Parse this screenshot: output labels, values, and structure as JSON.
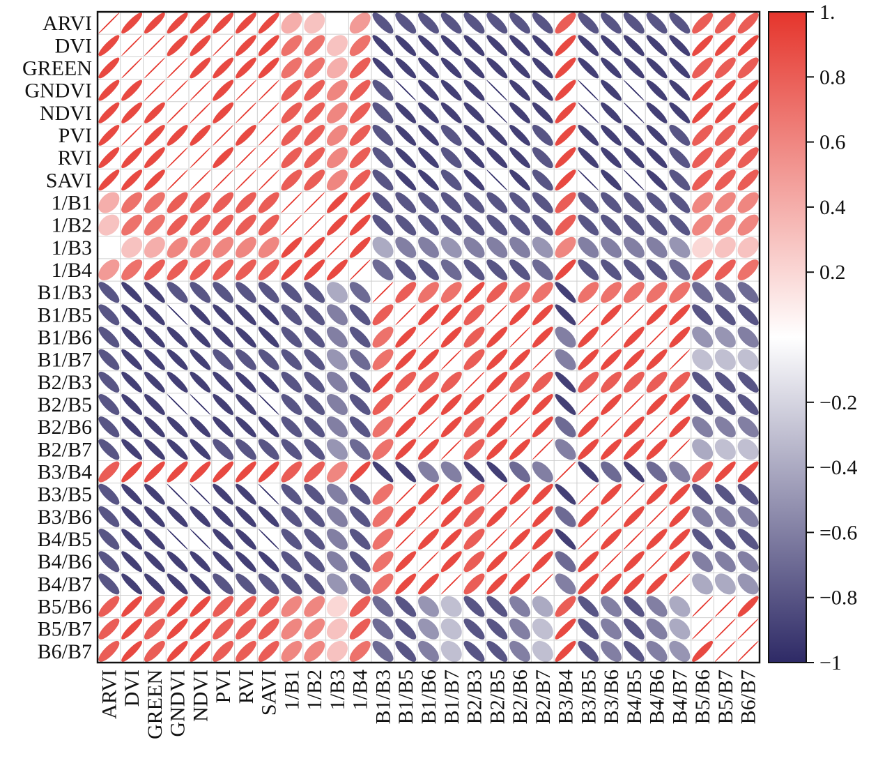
{
  "chart_data": {
    "type": "correlation",
    "variables": [
      "ARVI",
      "DVI",
      "GREEN",
      "GNDVI",
      "NDVI",
      "PVI",
      "RVI",
      "SAVI",
      "1/B1",
      "1/B2",
      "1/B3",
      "1/B4",
      "B1/B3",
      "B1/B5",
      "B1/B6",
      "B1/B7",
      "B2/B3",
      "B2/B5",
      "B2/B6",
      "B2/B7",
      "B3/B4",
      "B3/B5",
      "B3/B6",
      "B4/B5",
      "B4/B6",
      "B4/B7",
      "B5/B6",
      "B5/B7",
      "B6/B7"
    ],
    "matrix": [
      [
        1,
        0.9,
        0.9,
        0.9,
        0.9,
        0.9,
        0.9,
        0.9,
        0.4,
        0.3,
        0,
        0.5,
        -0.8,
        -0.8,
        -0.8,
        -0.8,
        -0.8,
        -0.8,
        -0.8,
        -0.8,
        0.8,
        -0.8,
        -0.8,
        -0.8,
        -0.8,
        -0.8,
        0.8,
        0.8,
        0.8
      ],
      [
        0.9,
        1,
        1,
        0.9,
        0.9,
        1,
        0.9,
        0.9,
        0.7,
        0.7,
        0.3,
        0.7,
        -0.9,
        -0.9,
        -0.9,
        -0.9,
        -0.9,
        -0.9,
        -0.9,
        -0.9,
        0.9,
        -0.9,
        -0.9,
        -0.9,
        -0.9,
        -0.9,
        0.9,
        0.9,
        0.9
      ],
      [
        0.9,
        1,
        1,
        1,
        0.9,
        0.9,
        0.9,
        0.9,
        0.7,
        0.7,
        0.4,
        0.8,
        -0.9,
        -0.9,
        -0.9,
        -0.9,
        -0.9,
        -0.9,
        -0.9,
        -0.9,
        0.9,
        -0.9,
        -0.9,
        -0.9,
        -0.9,
        -0.9,
        0.8,
        0.8,
        0.8
      ],
      [
        0.9,
        0.9,
        1,
        1,
        1,
        0.9,
        1,
        1,
        0.8,
        0.8,
        0.6,
        0.8,
        -0.8,
        -1,
        -0.9,
        -0.9,
        -0.9,
        -1,
        -0.9,
        -0.9,
        0.9,
        -1,
        -0.9,
        -1,
        -0.9,
        -0.9,
        0.9,
        0.9,
        0.9
      ],
      [
        0.9,
        0.9,
        0.9,
        1,
        1,
        0.9,
        1,
        1,
        0.8,
        0.8,
        0.6,
        0.8,
        -0.8,
        -0.9,
        -0.9,
        -0.9,
        -0.9,
        -1,
        -0.9,
        -0.9,
        0.9,
        -1,
        -0.9,
        -1,
        -0.9,
        -0.9,
        0.9,
        0.9,
        0.9
      ],
      [
        0.9,
        1,
        0.9,
        0.9,
        0.9,
        1,
        0.9,
        1,
        0.8,
        0.8,
        0.6,
        0.8,
        -0.8,
        -0.9,
        -0.9,
        -0.8,
        -0.9,
        -0.9,
        -0.9,
        -0.8,
        0.9,
        -0.9,
        -0.9,
        -0.9,
        -0.9,
        -0.8,
        0.8,
        0.8,
        0.8
      ],
      [
        0.9,
        0.9,
        0.9,
        1,
        1,
        0.9,
        1,
        1,
        0.8,
        0.8,
        0.6,
        0.8,
        -0.8,
        -0.9,
        -0.9,
        -0.8,
        -0.9,
        -0.9,
        -0.9,
        -0.8,
        0.9,
        -0.9,
        -0.9,
        -0.9,
        -0.9,
        -0.8,
        0.8,
        0.8,
        0.8
      ],
      [
        0.9,
        0.9,
        0.9,
        1,
        1,
        1,
        1,
        1,
        0.8,
        0.8,
        0.6,
        0.8,
        -0.8,
        -0.9,
        -0.9,
        -0.8,
        -0.9,
        -1,
        -0.9,
        -0.8,
        0.9,
        -1,
        -0.9,
        -1,
        -0.9,
        -0.8,
        0.8,
        0.8,
        0.8
      ],
      [
        0.4,
        0.7,
        0.7,
        0.8,
        0.8,
        0.8,
        0.8,
        0.8,
        1,
        1,
        0.9,
        0.9,
        -0.8,
        -0.8,
        -0.8,
        -0.8,
        -0.8,
        -0.8,
        -0.8,
        -0.8,
        0.8,
        -0.8,
        -0.8,
        -0.8,
        -0.8,
        -0.8,
        0.6,
        0.6,
        0.6
      ],
      [
        0.3,
        0.7,
        0.7,
        0.8,
        0.8,
        0.8,
        0.8,
        0.8,
        1,
        1,
        0.9,
        0.9,
        -0.8,
        -0.8,
        -0.8,
        -0.8,
        -0.8,
        -0.8,
        -0.8,
        -0.8,
        0.8,
        -0.8,
        -0.8,
        -0.8,
        -0.8,
        -0.8,
        0.6,
        0.6,
        0.6
      ],
      [
        0,
        0.3,
        0.4,
        0.6,
        0.6,
        0.6,
        0.6,
        0.6,
        0.9,
        0.9,
        1,
        0.9,
        -0.4,
        -0.6,
        -0.6,
        -0.5,
        -0.6,
        -0.6,
        -0.6,
        -0.5,
        0.6,
        -0.6,
        -0.6,
        -0.6,
        -0.6,
        -0.5,
        0.2,
        0.3,
        0.3
      ],
      [
        0.5,
        0.7,
        0.8,
        0.8,
        0.8,
        0.8,
        0.8,
        0.8,
        0.9,
        0.9,
        0.9,
        1,
        -0.7,
        -0.8,
        -0.8,
        -0.7,
        -0.8,
        -0.8,
        -0.8,
        -0.7,
        0.9,
        -0.8,
        -0.8,
        -0.8,
        -0.8,
        -0.7,
        0.8,
        0.8,
        0.7
      ],
      [
        -0.8,
        -0.9,
        -0.9,
        -0.8,
        -0.8,
        -0.8,
        -0.8,
        -0.8,
        -0.8,
        -0.8,
        -0.4,
        -0.7,
        1,
        0.8,
        0.7,
        0.7,
        0.9,
        0.8,
        0.7,
        0.7,
        -0.9,
        0.7,
        0.7,
        0.7,
        0.7,
        0.7,
        -0.7,
        -0.7,
        -0.7
      ],
      [
        -0.8,
        -0.9,
        -0.9,
        -1,
        -0.9,
        -0.9,
        -0.9,
        -0.9,
        -0.8,
        -0.8,
        -0.6,
        -0.8,
        0.8,
        1,
        0.9,
        0.9,
        0.8,
        1,
        0.9,
        0.9,
        -0.9,
        1,
        0.9,
        1,
        0.9,
        0.9,
        -0.8,
        -0.8,
        -0.8
      ],
      [
        -0.8,
        -0.9,
        -0.9,
        -0.9,
        -0.9,
        -0.9,
        -0.9,
        -0.9,
        -0.8,
        -0.8,
        -0.6,
        -0.8,
        0.7,
        0.9,
        1,
        0.9,
        0.8,
        0.9,
        1,
        0.9,
        -0.6,
        0.9,
        1,
        0.9,
        1,
        0.9,
        -0.5,
        -0.5,
        -0.6
      ],
      [
        -0.8,
        -0.9,
        -0.9,
        -0.9,
        -0.9,
        -0.8,
        -0.8,
        -0.8,
        -0.8,
        -0.8,
        -0.5,
        -0.7,
        0.7,
        0.9,
        0.9,
        1,
        0.8,
        0.9,
        0.9,
        1,
        -0.6,
        0.9,
        0.9,
        0.9,
        0.9,
        1,
        -0.3,
        -0.3,
        -0.3
      ],
      [
        -0.8,
        -0.9,
        -0.9,
        -0.9,
        -0.9,
        -0.9,
        -0.9,
        -0.9,
        -0.8,
        -0.8,
        -0.6,
        -0.8,
        0.9,
        0.8,
        0.8,
        0.8,
        1,
        0.9,
        0.8,
        0.8,
        -0.9,
        0.8,
        0.8,
        0.8,
        0.8,
        0.8,
        -0.8,
        -0.8,
        -0.8
      ],
      [
        -0.8,
        -0.9,
        -0.9,
        -1,
        -1,
        -0.9,
        -0.9,
        -1,
        -0.8,
        -0.8,
        -0.6,
        -0.8,
        0.8,
        1,
        0.9,
        0.9,
        0.9,
        1,
        0.9,
        0.9,
        -0.9,
        1,
        0.9,
        1,
        0.9,
        0.9,
        -0.8,
        -0.8,
        -0.8
      ],
      [
        -0.8,
        -0.9,
        -0.9,
        -0.9,
        -0.9,
        -0.9,
        -0.9,
        -0.9,
        -0.8,
        -0.8,
        -0.6,
        -0.8,
        0.7,
        0.9,
        1,
        0.9,
        0.8,
        0.9,
        1,
        0.9,
        -0.7,
        0.9,
        1,
        0.9,
        1,
        0.9,
        -0.6,
        -0.6,
        -0.6
      ],
      [
        -0.8,
        -0.9,
        -0.9,
        -0.9,
        -0.9,
        -0.8,
        -0.8,
        -0.8,
        -0.8,
        -0.8,
        -0.5,
        -0.7,
        0.7,
        0.9,
        0.9,
        1,
        0.8,
        0.9,
        0.9,
        1,
        -0.6,
        0.9,
        0.9,
        0.9,
        0.9,
        1,
        -0.4,
        -0.3,
        -0.3
      ],
      [
        0.8,
        0.9,
        0.9,
        0.9,
        0.9,
        0.9,
        0.9,
        0.9,
        0.8,
        0.8,
        0.6,
        0.9,
        -0.9,
        -0.9,
        -0.6,
        -0.6,
        -0.9,
        -0.9,
        -0.7,
        -0.6,
        1,
        -0.9,
        -0.7,
        -0.9,
        -0.7,
        -0.6,
        0.8,
        0.9,
        0.9
      ],
      [
        -0.8,
        -0.9,
        -0.9,
        -1,
        -1,
        -0.9,
        -0.9,
        -1,
        -0.8,
        -0.8,
        -0.6,
        -0.8,
        0.7,
        1,
        0.9,
        0.9,
        0.8,
        1,
        0.9,
        0.9,
        -0.9,
        1,
        0.9,
        1,
        0.9,
        0.9,
        -0.8,
        -0.8,
        -0.8
      ],
      [
        -0.8,
        -0.9,
        -0.9,
        -0.9,
        -0.9,
        -0.9,
        -0.9,
        -0.9,
        -0.8,
        -0.8,
        -0.6,
        -0.8,
        0.7,
        0.9,
        1,
        0.9,
        0.8,
        0.9,
        1,
        0.9,
        -0.7,
        0.9,
        1,
        0.9,
        1,
        0.9,
        -0.6,
        -0.6,
        -0.6
      ],
      [
        -0.8,
        -0.9,
        -0.9,
        -1,
        -1,
        -0.9,
        -0.9,
        -1,
        -0.8,
        -0.8,
        -0.6,
        -0.8,
        0.7,
        1,
        0.9,
        0.9,
        0.8,
        1,
        0.9,
        0.9,
        -0.9,
        1,
        0.9,
        1,
        0.9,
        0.9,
        -0.8,
        -0.8,
        -0.8
      ],
      [
        -0.8,
        -0.9,
        -0.9,
        -0.9,
        -0.9,
        -0.9,
        -0.9,
        -0.9,
        -0.8,
        -0.8,
        -0.6,
        -0.8,
        0.7,
        0.9,
        1,
        0.9,
        0.8,
        0.9,
        1,
        0.9,
        -0.7,
        0.9,
        1,
        0.9,
        1,
        0.9,
        -0.6,
        -0.6,
        -0.6
      ],
      [
        -0.8,
        -0.9,
        -0.9,
        -0.9,
        -0.9,
        -0.8,
        -0.8,
        -0.8,
        -0.8,
        -0.8,
        -0.5,
        -0.7,
        0.7,
        0.9,
        0.9,
        1,
        0.8,
        0.9,
        0.9,
        1,
        -0.6,
        0.9,
        0.9,
        0.9,
        0.9,
        1,
        -0.4,
        -0.4,
        -0.5
      ],
      [
        0.8,
        0.9,
        0.8,
        0.9,
        0.9,
        0.8,
        0.8,
        0.8,
        0.6,
        0.6,
        0.2,
        0.8,
        -0.7,
        -0.8,
        -0.5,
        -0.3,
        -0.8,
        -0.8,
        -0.6,
        -0.4,
        0.8,
        -0.8,
        -0.6,
        -0.8,
        -0.6,
        -0.4,
        1,
        1,
        0.9
      ],
      [
        0.8,
        0.9,
        0.8,
        0.9,
        0.9,
        0.8,
        0.8,
        0.8,
        0.6,
        0.6,
        0.3,
        0.8,
        -0.7,
        -0.8,
        -0.5,
        -0.3,
        -0.8,
        -0.8,
        -0.6,
        -0.3,
        0.9,
        -0.8,
        -0.6,
        -0.8,
        -0.6,
        -0.4,
        1,
        1,
        1
      ],
      [
        0.8,
        0.9,
        0.8,
        0.9,
        0.9,
        0.8,
        0.8,
        0.8,
        0.6,
        0.6,
        0.3,
        0.7,
        -0.7,
        -0.8,
        -0.6,
        -0.3,
        -0.8,
        -0.8,
        -0.6,
        -0.3,
        0.9,
        -0.8,
        -0.6,
        -0.8,
        -0.6,
        -0.5,
        0.9,
        1,
        1
      ]
    ],
    "colors": {
      "low": "#2e2a66",
      "mid": "#ffffff",
      "high": "#e5352c"
    },
    "clim": [
      -1,
      1
    ],
    "cticks": [
      {
        "value": 1,
        "label": "1."
      },
      0.8,
      0.6,
      0.4,
      0.2,
      {
        "value": -0.2,
        "label": "−0.2"
      },
      {
        "value": -0.4,
        "label": "−0.4"
      },
      {
        "value": -0.6,
        "label": "=0.6"
      },
      {
        "value": -0.8,
        "label": "−0.8"
      },
      {
        "value": -1,
        "label": "−1"
      }
    ]
  }
}
